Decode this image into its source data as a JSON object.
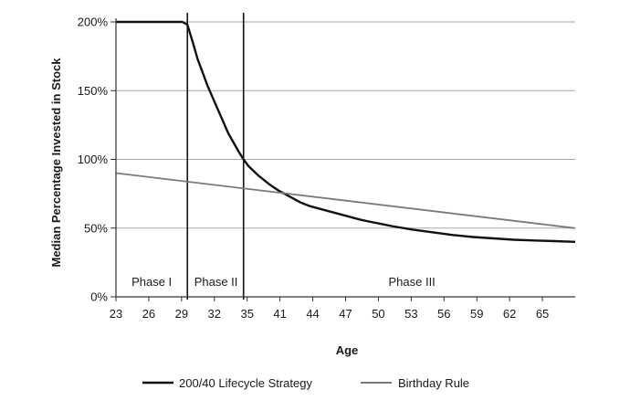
{
  "chart_data": {
    "type": "line",
    "xlabel": "Age",
    "ylabel": "Median Percentage Invested in Stock",
    "xlim": [
      23,
      68
    ],
    "ylim": [
      0,
      200
    ],
    "x_ticks": [
      "23",
      "26",
      "29",
      "32",
      "35",
      "41",
      "44",
      "47",
      "50",
      "53",
      "56",
      "59",
      "62",
      "65"
    ],
    "y_ticks": [
      "0%",
      "50%",
      "100%",
      "150%",
      "200%"
    ],
    "grid": "horizontal",
    "legend_position": "bottom",
    "phase_boundaries": [
      30,
      35.5
    ],
    "phases": [
      {
        "label": "Phase I",
        "x": 26.5
      },
      {
        "label": "Phase II",
        "x": 32.8
      },
      {
        "label": "Phase III",
        "x": 52
      }
    ],
    "series": [
      {
        "name": "200/40 Lifecycle Strategy",
        "color": "#111111",
        "points": [
          [
            23,
            200
          ],
          [
            29.5,
            200
          ],
          [
            30,
            198
          ],
          [
            30.5,
            186
          ],
          [
            31,
            173
          ],
          [
            32,
            153
          ],
          [
            33,
            136
          ],
          [
            34,
            119
          ],
          [
            35,
            106
          ],
          [
            35.5,
            100
          ],
          [
            36,
            95
          ],
          [
            37,
            88
          ],
          [
            38,
            82
          ],
          [
            39,
            77
          ],
          [
            40,
            73
          ],
          [
            41,
            69
          ],
          [
            42,
            66
          ],
          [
            43,
            64
          ],
          [
            44,
            62
          ],
          [
            45,
            60
          ],
          [
            46,
            58
          ],
          [
            47,
            56
          ],
          [
            48,
            54.5
          ],
          [
            49,
            53
          ],
          [
            50,
            51.5
          ],
          [
            52,
            49
          ],
          [
            54,
            47
          ],
          [
            56,
            45
          ],
          [
            58,
            43.5
          ],
          [
            60,
            42.5
          ],
          [
            62,
            41.5
          ],
          [
            64,
            41
          ],
          [
            66,
            40.5
          ],
          [
            68,
            40
          ]
        ]
      },
      {
        "name": "Birthday Rule",
        "color": "#7a7a7a",
        "points": [
          [
            23,
            90
          ],
          [
            68,
            50
          ]
        ]
      }
    ]
  }
}
